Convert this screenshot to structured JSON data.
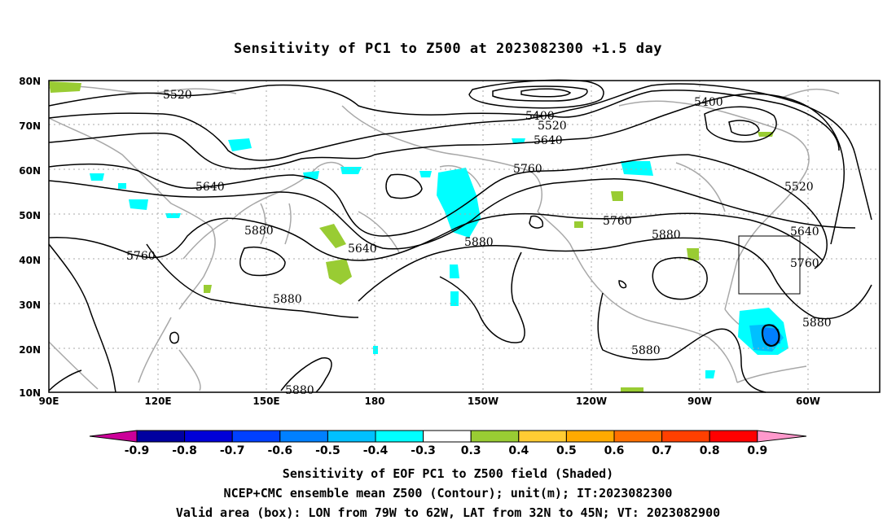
{
  "title": "Sensitivity of PC1 to Z500 at 2023082300 +1.5 day",
  "lat_labels": [
    "80N",
    "70N",
    "60N",
    "50N",
    "40N",
    "30N",
    "20N",
    "10N"
  ],
  "lon_labels": [
    "90E",
    "120E",
    "150E",
    "180",
    "150W",
    "120W",
    "90W",
    "60W"
  ],
  "contour_labels": [
    "5520",
    "5400",
    "5520",
    "5640",
    "5400",
    "5640",
    "5760",
    "5520",
    "5880",
    "5640",
    "5760",
    "5880",
    "5760",
    "5880",
    "5640",
    "5760",
    "5880",
    "5880",
    "5880",
    "5880"
  ],
  "colorbar": {
    "labels": [
      "-0.9",
      "-0.8",
      "-0.7",
      "-0.6",
      "-0.5",
      "-0.4",
      "-0.3",
      "0.3",
      "0.4",
      "0.5",
      "0.6",
      "0.7",
      "0.8",
      "0.9"
    ],
    "colors": [
      "#0000a0",
      "#0000d8",
      "#0040ff",
      "#0080ff",
      "#00c0ff",
      "#00ffff",
      "#ffffff",
      "#99cc33",
      "#ffcc33",
      "#ffaa00",
      "#ff7000",
      "#ff4000",
      "#ff0000"
    ],
    "low_arrow_color": "#cc0099",
    "high_arrow_color": "#ff99cc"
  },
  "captions": [
    "Sensitivity of EOF PC1 to Z500 field (Shaded)",
    "NCEP+CMC ensemble mean Z500 (Contour); unit(m); IT:2023082300",
    "Valid area (box): LON from 79W to 62W, LAT from 32N to 45N; VT: 2023082900"
  ],
  "valid_box": {
    "lon_west": -79,
    "lon_east": -62,
    "lat_south": 32,
    "lat_north": 45
  }
}
